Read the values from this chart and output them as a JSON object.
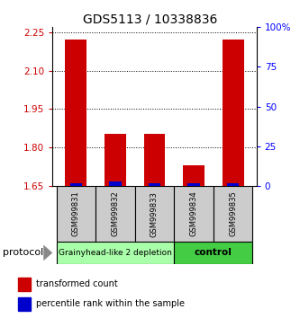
{
  "title": "GDS5113 / 10338836",
  "samples": [
    "GSM999831",
    "GSM999832",
    "GSM999833",
    "GSM999834",
    "GSM999835"
  ],
  "red_values": [
    2.22,
    1.855,
    1.855,
    1.73,
    2.22
  ],
  "blue_percentiles": [
    1.5,
    3.0,
    2.0,
    1.5,
    1.5
  ],
  "ylim_left": [
    1.65,
    2.27
  ],
  "ylim_right": [
    0,
    100
  ],
  "yticks_left": [
    1.65,
    1.8,
    1.95,
    2.1,
    2.25
  ],
  "yticks_right": [
    0,
    25,
    50,
    75,
    100
  ],
  "ytick_labels_right": [
    "0",
    "25",
    "50",
    "75",
    "100%"
  ],
  "group1_label": "Grainyhead-like 2 depletion",
  "group2_label": "control",
  "group1_color": "#aaffaa",
  "group2_color": "#44cc44",
  "sample_bg_color": "#cccccc",
  "protocol_label": "protocol",
  "legend_red": "transformed count",
  "legend_blue": "percentile rank within the sample",
  "bar_width": 0.55,
  "red_color": "#cc0000",
  "blue_color": "#0000cc",
  "baseline": 1.65,
  "title_fontsize": 10,
  "tick_fontsize": 7.5,
  "sample_fontsize": 6,
  "group_fontsize": 6.5,
  "legend_fontsize": 7
}
